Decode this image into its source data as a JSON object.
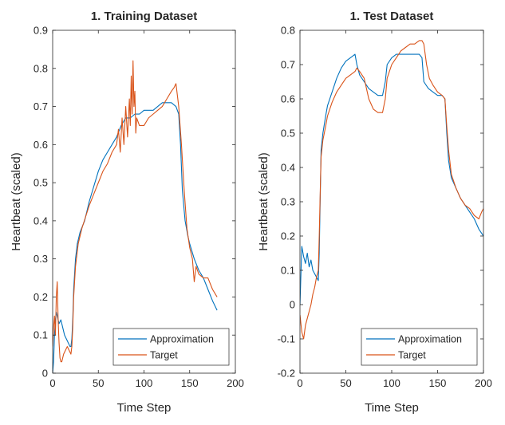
{
  "chart_data": [
    {
      "type": "line",
      "title": "1. Training Dataset",
      "xlabel": "Time Step",
      "ylabel": "Heartbeat (scaled)",
      "xlim": [
        0,
        200
      ],
      "ylim": [
        0,
        0.9
      ],
      "xticks": [
        0,
        50,
        100,
        150,
        200
      ],
      "xtick_labels": [
        "0",
        "50",
        "100",
        "150",
        "200"
      ],
      "yticks": [
        0,
        0.1,
        0.2,
        0.3,
        0.4,
        0.5,
        0.6,
        0.7,
        0.8,
        0.9
      ],
      "ytick_labels": [
        "0",
        "0.1",
        "0.2",
        "0.3",
        "0.4",
        "0.5",
        "0.6",
        "0.7",
        "0.8",
        "0.9"
      ],
      "grid": false,
      "legend_position": "bottom-right",
      "series": [
        {
          "name": "Approximation",
          "color": "#0072BD",
          "x": [
            0,
            1,
            2,
            3,
            4,
            5,
            7,
            9,
            11,
            13,
            15,
            17,
            19,
            20,
            21,
            22,
            23,
            25,
            27,
            30,
            35,
            40,
            45,
            50,
            55,
            60,
            65,
            70,
            75,
            80,
            85,
            90,
            95,
            100,
            105,
            110,
            115,
            120,
            125,
            130,
            135,
            138,
            140,
            142,
            145,
            148,
            150,
            155,
            160,
            165,
            170,
            175,
            180
          ],
          "values": [
            0.0,
            0.03,
            0.1,
            0.14,
            0.16,
            0.15,
            0.13,
            0.14,
            0.12,
            0.1,
            0.09,
            0.08,
            0.07,
            0.07,
            0.09,
            0.14,
            0.22,
            0.3,
            0.34,
            0.37,
            0.4,
            0.45,
            0.49,
            0.53,
            0.56,
            0.58,
            0.6,
            0.62,
            0.65,
            0.67,
            0.67,
            0.68,
            0.68,
            0.69,
            0.69,
            0.69,
            0.7,
            0.71,
            0.71,
            0.71,
            0.7,
            0.68,
            0.6,
            0.48,
            0.4,
            0.36,
            0.34,
            0.3,
            0.27,
            0.25,
            0.22,
            0.19,
            0.165
          ]
        },
        {
          "name": "Target",
          "color": "#D95319",
          "x": [
            0,
            1,
            2,
            3,
            4,
            5,
            6,
            7,
            8,
            9,
            10,
            11,
            12,
            14,
            16,
            18,
            20,
            21,
            22,
            23,
            25,
            28,
            32,
            36,
            40,
            45,
            50,
            55,
            60,
            65,
            70,
            72,
            74,
            76,
            78,
            80,
            82,
            84,
            85,
            86,
            87,
            88,
            89,
            90,
            91,
            92,
            95,
            100,
            105,
            110,
            115,
            120,
            125,
            130,
            133,
            135,
            138,
            141,
            144,
            147,
            150,
            153,
            155,
            157,
            160,
            165,
            170,
            175,
            180
          ],
          "values": [
            0.07,
            0.12,
            0.15,
            0.1,
            0.2,
            0.24,
            0.14,
            0.08,
            0.04,
            0.03,
            0.03,
            0.04,
            0.05,
            0.06,
            0.07,
            0.06,
            0.05,
            0.07,
            0.12,
            0.2,
            0.28,
            0.34,
            0.38,
            0.41,
            0.44,
            0.47,
            0.5,
            0.53,
            0.55,
            0.58,
            0.6,
            0.64,
            0.58,
            0.67,
            0.6,
            0.7,
            0.62,
            0.72,
            0.65,
            0.78,
            0.68,
            0.82,
            0.7,
            0.74,
            0.63,
            0.67,
            0.65,
            0.65,
            0.67,
            0.68,
            0.69,
            0.7,
            0.72,
            0.74,
            0.75,
            0.76,
            0.7,
            0.6,
            0.48,
            0.38,
            0.33,
            0.3,
            0.24,
            0.28,
            0.26,
            0.25,
            0.25,
            0.22,
            0.2
          ]
        }
      ]
    },
    {
      "type": "line",
      "title": "1. Test Dataset",
      "xlabel": "Time Step",
      "ylabel": "Heartbeat (scaled)",
      "xlim": [
        0,
        200
      ],
      "ylim": [
        -0.2,
        0.8
      ],
      "xticks": [
        0,
        50,
        100,
        150,
        200
      ],
      "xtick_labels": [
        "0",
        "50",
        "100",
        "150",
        "200"
      ],
      "yticks": [
        -0.2,
        -0.1,
        0,
        0.1,
        0.2,
        0.3,
        0.4,
        0.5,
        0.6,
        0.7,
        0.8
      ],
      "ytick_labels": [
        "-0.2",
        "-0.1",
        "0",
        "0.1",
        "0.2",
        "0.3",
        "0.4",
        "0.5",
        "0.6",
        "0.7",
        "0.8"
      ],
      "grid": false,
      "legend_position": "bottom-right",
      "series": [
        {
          "name": "Approximation",
          "color": "#0072BD",
          "x": [
            0,
            2,
            4,
            6,
            8,
            10,
            12,
            14,
            16,
            18,
            20,
            21,
            22,
            23,
            25,
            28,
            30,
            35,
            40,
            45,
            50,
            55,
            60,
            62,
            65,
            70,
            75,
            80,
            85,
            90,
            93,
            95,
            100,
            105,
            110,
            115,
            120,
            125,
            130,
            133,
            135,
            140,
            145,
            150,
            155,
            158,
            160,
            162,
            165,
            170,
            175,
            180,
            185,
            190,
            195,
            200
          ],
          "values": [
            0.0,
            0.17,
            0.14,
            0.12,
            0.15,
            0.11,
            0.13,
            0.1,
            0.09,
            0.08,
            0.07,
            0.15,
            0.3,
            0.45,
            0.5,
            0.55,
            0.58,
            0.62,
            0.66,
            0.69,
            0.71,
            0.72,
            0.73,
            0.7,
            0.67,
            0.65,
            0.63,
            0.62,
            0.61,
            0.61,
            0.65,
            0.7,
            0.72,
            0.73,
            0.73,
            0.73,
            0.73,
            0.73,
            0.73,
            0.72,
            0.65,
            0.63,
            0.62,
            0.61,
            0.61,
            0.6,
            0.5,
            0.42,
            0.37,
            0.34,
            0.31,
            0.29,
            0.27,
            0.25,
            0.22,
            0.2
          ]
        },
        {
          "name": "Target",
          "color": "#D95319",
          "x": [
            0,
            2,
            4,
            6,
            8,
            10,
            12,
            14,
            16,
            18,
            20,
            21,
            22,
            23,
            25,
            28,
            30,
            35,
            40,
            45,
            50,
            55,
            60,
            62,
            65,
            70,
            75,
            80,
            85,
            90,
            93,
            95,
            100,
            105,
            110,
            115,
            120,
            125,
            130,
            133,
            135,
            138,
            141,
            145,
            150,
            155,
            158,
            160,
            162,
            165,
            170,
            175,
            180,
            185,
            190,
            195,
            198,
            200
          ],
          "values": [
            -0.03,
            -0.08,
            -0.1,
            -0.06,
            -0.04,
            -0.02,
            0.0,
            0.03,
            0.05,
            0.08,
            0.1,
            0.2,
            0.32,
            0.43,
            0.48,
            0.52,
            0.55,
            0.59,
            0.62,
            0.64,
            0.66,
            0.67,
            0.68,
            0.69,
            0.68,
            0.66,
            0.6,
            0.57,
            0.56,
            0.56,
            0.6,
            0.66,
            0.7,
            0.72,
            0.74,
            0.75,
            0.76,
            0.76,
            0.77,
            0.77,
            0.76,
            0.7,
            0.66,
            0.64,
            0.62,
            0.61,
            0.6,
            0.52,
            0.45,
            0.38,
            0.34,
            0.31,
            0.29,
            0.28,
            0.26,
            0.25,
            0.27,
            0.28
          ]
        }
      ]
    }
  ]
}
